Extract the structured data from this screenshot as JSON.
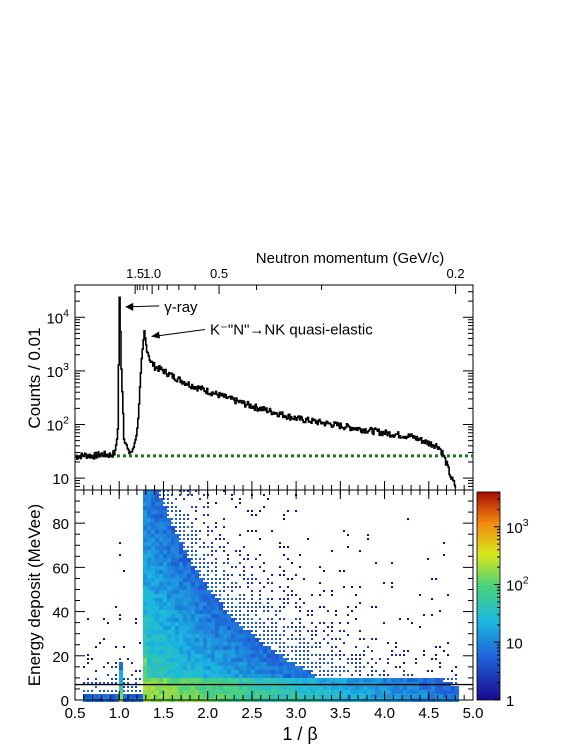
{
  "chart_data": [
    {
      "type": "line",
      "panel": "top",
      "xlabel_top": "Neutron momentum (GeV/c)",
      "top_axis_ticks": [
        "1.5",
        "1.0",
        "0.5",
        "0.2"
      ],
      "ylabel": "Counts / 0.01",
      "y_scale": "log",
      "ylim": [
        6,
        40000
      ],
      "y_ticks": [
        "10",
        "10^2",
        "10^3",
        "10^4"
      ],
      "xlim": [
        0.5,
        5.0
      ],
      "annotations": [
        {
          "text": "γ-ray",
          "x": 1.0,
          "y": 22000
        },
        {
          "text": "K⁻\"N\"→NK quasi-elastic",
          "x": 1.28,
          "y": 5200
        }
      ],
      "series": [
        {
          "x": [
            0.5,
            0.6,
            0.7,
            0.8,
            0.9,
            0.95,
            0.98,
            1.0,
            1.02,
            1.05,
            1.1,
            1.15,
            1.2,
            1.25,
            1.28,
            1.3,
            1.35,
            1.4,
            1.5,
            1.6,
            1.8,
            2.0,
            2.2,
            2.5,
            2.8,
            3.0,
            3.5,
            4.0,
            4.3,
            4.5,
            4.6,
            4.65,
            4.7,
            4.75,
            4.8
          ],
          "y": [
            25,
            27,
            26,
            28,
            27,
            30,
            80,
            22000,
            1200,
            60,
            30,
            32,
            80,
            1500,
            5200,
            3000,
            1500,
            1200,
            1000,
            800,
            550,
            420,
            320,
            220,
            160,
            130,
            95,
            70,
            60,
            45,
            40,
            30,
            18,
            10,
            7
          ]
        }
      ],
      "reference_line": {
        "y": 26,
        "style": "dotted",
        "color": "#1a7a1a"
      }
    },
    {
      "type": "heatmap",
      "panel": "bottom",
      "xlabel": "1 / β",
      "ylabel": "Energy deposit (MeVee)",
      "xlim": [
        0.5,
        5.0
      ],
      "ylim": [
        0,
        95
      ],
      "x_ticks": [
        "0.5",
        "1.0",
        "1.5",
        "2.0",
        "2.5",
        "3.0",
        "3.5",
        "4.0",
        "4.5",
        "5.0"
      ],
      "y_ticks": [
        "0",
        "20",
        "40",
        "60",
        "80"
      ],
      "z_scale": "log",
      "colorbar_ticks": [
        "1",
        "10",
        "10^2",
        "10^3"
      ],
      "threshold_line": {
        "y": 7
      }
    }
  ]
}
